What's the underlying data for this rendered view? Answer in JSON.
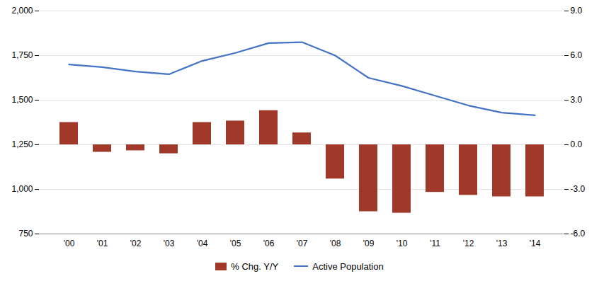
{
  "chart_data": {
    "type": "bar",
    "categories": [
      "'00",
      "'01",
      "'02",
      "'03",
      "'04",
      "'05",
      "'06",
      "'07",
      "'08",
      "'09",
      "'10",
      "'11",
      "'12",
      "'13",
      "'14"
    ],
    "series": [
      {
        "name": "% Chg. Y/Y",
        "type": "bar",
        "axis": "y2",
        "color": "#a0392a",
        "values": [
          1.5,
          -0.5,
          -0.4,
          -0.6,
          1.5,
          1.6,
          2.3,
          0.8,
          -2.3,
          -4.5,
          -4.6,
          -3.2,
          -3.4,
          -3.5,
          -3.5
        ]
      },
      {
        "name": "Active Population",
        "type": "line",
        "color": "#4472c4",
        "values": [
          1700,
          1685,
          1660,
          1645,
          1720,
          1765,
          1820,
          1825,
          1750,
          1625,
          1580,
          1525,
          1470,
          1430,
          1415
        ]
      }
    ],
    "ylim": [
      750,
      2000
    ],
    "yticks": [
      750,
      {
        "value": 1000,
        "label": "1,000"
      },
      {
        "value": 1250,
        "label": "1,250"
      },
      {
        "value": 1500,
        "label": "1,500"
      },
      {
        "value": 1750,
        "label": "1,750"
      },
      {
        "value": 2000,
        "label": "2,000"
      }
    ],
    "y2lim": [
      -6.0,
      9.0
    ],
    "y2ticks": [
      {
        "value": -6.0,
        "label": "-6.0"
      },
      {
        "value": -3.0,
        "label": "-3.0"
      },
      {
        "value": 0.0,
        "label": "0.0"
      },
      {
        "value": 3.0,
        "label": "3.0"
      },
      {
        "value": 6.0,
        "label": "6.0"
      },
      {
        "value": 9.0,
        "label": "9.0"
      }
    ],
    "grid": true,
    "legend": "bottom"
  }
}
